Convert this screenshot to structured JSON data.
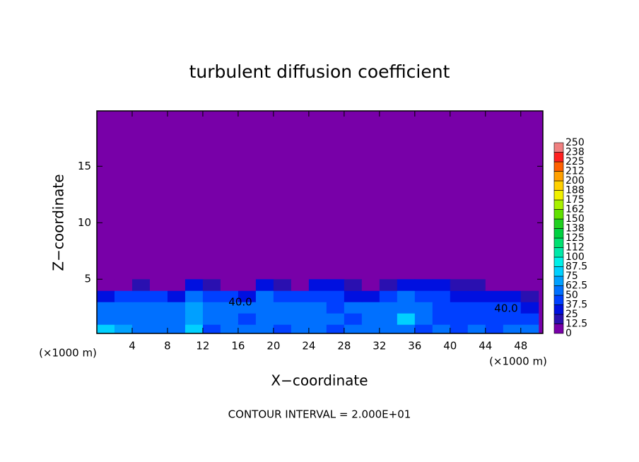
{
  "chart_data": {
    "type": "heatmap",
    "title": "turbulent diffusion coefficient",
    "x_label": "X−coordinate",
    "y_label": "Z−coordinate",
    "x_unit": "(×1000 m)",
    "footer": "CONTOUR INTERVAL = 2.000E+01",
    "annotations": [
      "40.0",
      "40.0"
    ],
    "xlim": [
      0,
      50.5
    ],
    "ylim": [
      0.2,
      19.9
    ],
    "xticks": [
      4,
      8,
      12,
      16,
      20,
      24,
      28,
      32,
      36,
      40,
      44,
      48
    ],
    "yticks": [
      5,
      10,
      15
    ],
    "background": "#7800a8",
    "x": [
      1,
      3,
      5,
      7,
      9,
      11,
      13,
      15,
      17,
      19,
      21,
      23,
      25,
      27,
      29,
      31,
      33,
      35,
      37,
      39,
      41,
      43,
      45,
      47,
      49
    ],
    "y": [
      0.6,
      1.5,
      2.5,
      3.5,
      4.5
    ],
    "z": [
      [
        80,
        70,
        60,
        55,
        50,
        75,
        45,
        55,
        50,
        60,
        45,
        55,
        50,
        45,
        55,
        60,
        50,
        55,
        45,
        50,
        45,
        50,
        45,
        50,
        50
      ],
      [
        60,
        55,
        50,
        60,
        55,
        70,
        50,
        55,
        45,
        55,
        50,
        60,
        55,
        50,
        45,
        55,
        60,
        75,
        50,
        45,
        45,
        45,
        40,
        40,
        45
      ],
      [
        50,
        55,
        60,
        50,
        60,
        65,
        55,
        60,
        50,
        60,
        55,
        50,
        60,
        45,
        50,
        60,
        55,
        60,
        55,
        45,
        40,
        40,
        40,
        40,
        35
      ],
      [
        30,
        40,
        45,
        40,
        30,
        55,
        40,
        45,
        25,
        50,
        45,
        40,
        45,
        40,
        35,
        35,
        45,
        50,
        45,
        40,
        35,
        35,
        30,
        30,
        20
      ],
      [
        0,
        0,
        20,
        0,
        10,
        30,
        20,
        10,
        0,
        25,
        20,
        10,
        25,
        30,
        15,
        0,
        20,
        25,
        30,
        25,
        20,
        15,
        10,
        0,
        0
      ]
    ],
    "levels": [
      0,
      12.5,
      25,
      37.5,
      50,
      62.5,
      75,
      87.5,
      100,
      112,
      125,
      {
        "value": 137.5,
        "label": "138"
      },
      150,
      {
        "value": 162.5,
        "label": "162"
      },
      175,
      {
        "value": 187.5,
        "label": "188"
      },
      200,
      {
        "value": 212.5,
        "label": "212"
      },
      225,
      {
        "value": 237.5,
        "label": "238"
      },
      250
    ],
    "colors": [
      "#7800a8",
      "#2a10b0",
      "#0010e0",
      "#0040ff",
      "#0070ff",
      "#00a0ff",
      "#00d0ff",
      "#00f0e8",
      "#00e8a8",
      "#00e070",
      "#00d040",
      "#20d020",
      "#60e000",
      "#a8f000",
      "#f0f000",
      "#ffd000",
      "#ffa000",
      "#ff6000",
      "#ff2020",
      "#f08080"
    ]
  }
}
